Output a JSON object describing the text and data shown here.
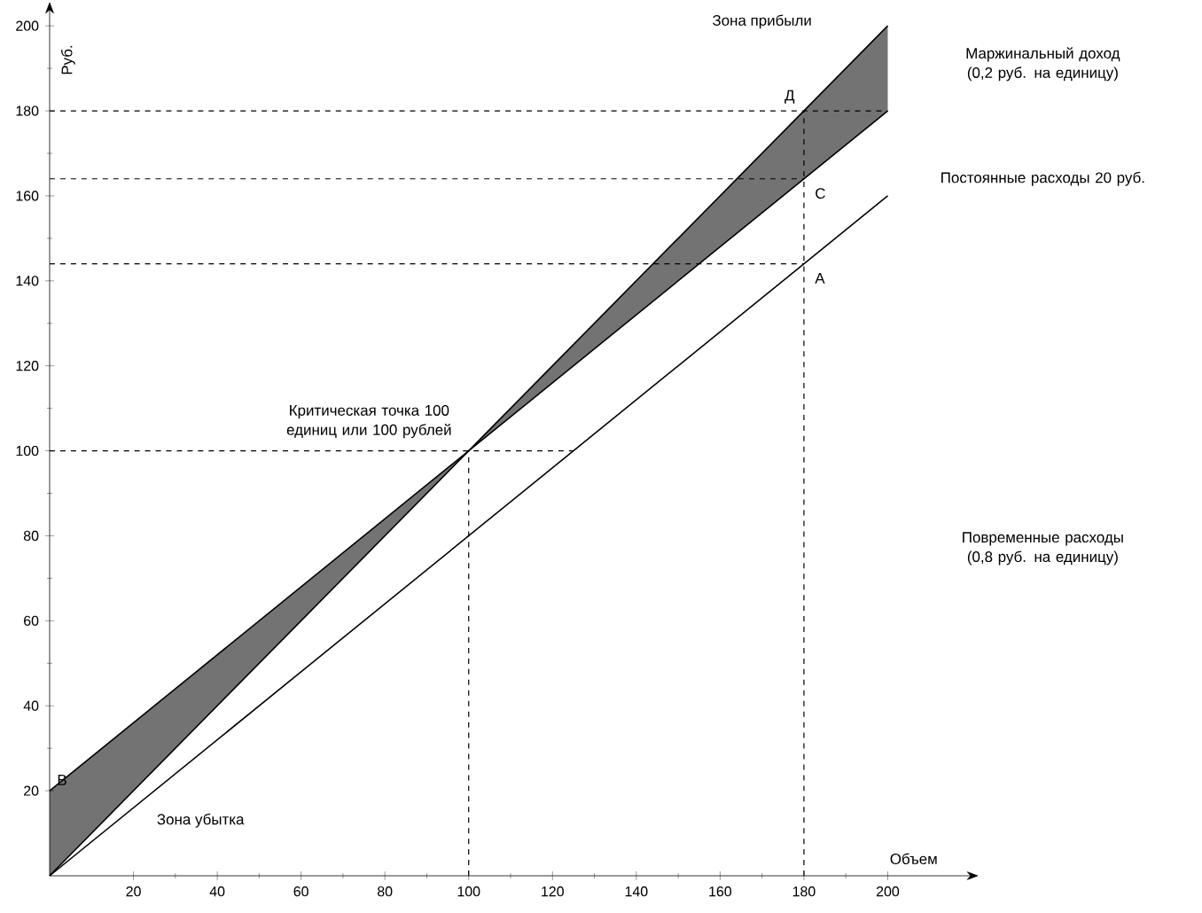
{
  "chart_data": {
    "type": "line",
    "xlabel": "Объем",
    "ylabel": "Руб.",
    "xlim": [
      0,
      220
    ],
    "ylim": [
      0,
      204
    ],
    "xticks": [
      20,
      40,
      60,
      80,
      100,
      120,
      140,
      160,
      180,
      200
    ],
    "yticks": [
      20,
      40,
      60,
      80,
      100,
      120,
      140,
      160,
      180,
      200
    ],
    "series": [
      {
        "color": "#000000",
        "x": [
          0,
          100,
          200
        ],
        "values": [
          0,
          100,
          200
        ],
        "lower": [
          0,
          100,
          180
        ],
        "upper": [
          20,
          100,
          200
        ]
      },
      {
        "color": "#000000",
        "x": [
          0,
          200
        ],
        "values": [
          20,
          180
        ]
      },
      {
        "color": "#000000",
        "x": [
          0,
          200
        ],
        "values": [
          0,
          160
        ]
      }
    ],
    "ref_lines": [
      {
        "axis": "y",
        "value": 180,
        "line_style": "dashed"
      },
      {
        "axis": "y",
        "value": 164,
        "line_style": "dashed"
      },
      {
        "axis": "y",
        "value": 144,
        "line_style": "dashed"
      },
      {
        "axis": "y",
        "value": 100,
        "line_style": "dashed"
      },
      {
        "axis": "x",
        "value": 100,
        "line_style": "dashed"
      },
      {
        "axis": "x",
        "value": 180,
        "line_style": "dashed"
      }
    ],
    "annotations": [
      "Зона прибыли",
      {
        "text": "Д",
        "x": 180,
        "y": 180
      },
      {
        "text": "С",
        "x": 180,
        "y": 164
      },
      {
        "text": "А",
        "x": 180,
        "y": 144
      },
      {
        "text": "Критическая точка 100 единиц или 100 рублей",
        "x": 100,
        "y": 100
      },
      {
        "text": "В",
        "x": 0,
        "y": 20
      },
      "Зона убытка",
      "Маржинальный доход (0,2 руб. на единицу)",
      "Постоянные расходы 20 руб.",
      "Повременные расходы (0,8 руб. на единицу)"
    ],
    "marker": "none",
    "line_style": "solid"
  }
}
